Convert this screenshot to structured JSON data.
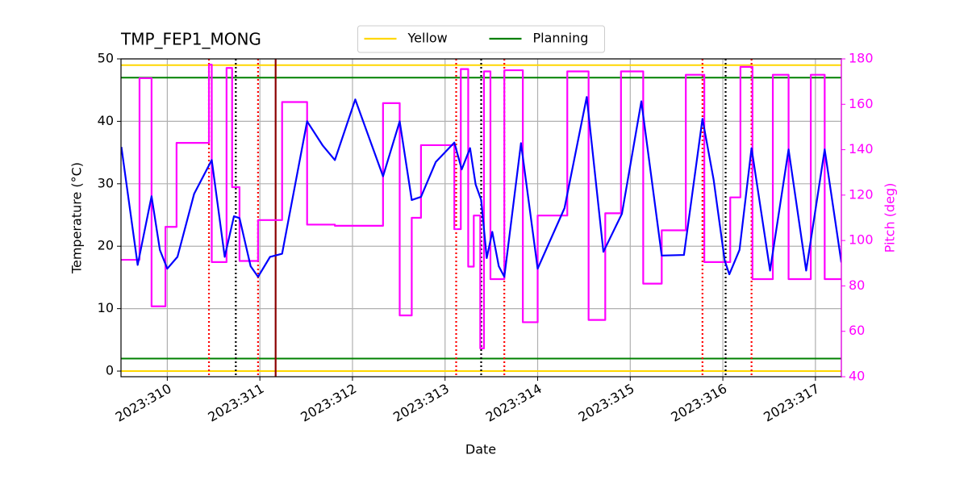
{
  "chart_data": {
    "type": "line",
    "title": "TMP_FEP1_MONG",
    "xlabel": "Date",
    "ylabel": "Temperature (°C)",
    "y2label": "Pitch (deg)",
    "xlim": [
      309.5,
      317.28
    ],
    "ylim": [
      -0.9,
      50
    ],
    "y2lim": [
      40,
      180
    ],
    "xticks": [
      {
        "value": 310,
        "label": "2023:310"
      },
      {
        "value": 311,
        "label": "2023:311"
      },
      {
        "value": 312,
        "label": "2023:312"
      },
      {
        "value": 313,
        "label": "2023:313"
      },
      {
        "value": 314,
        "label": "2023:314"
      },
      {
        "value": 315,
        "label": "2023:315"
      },
      {
        "value": 316,
        "label": "2023:316"
      },
      {
        "value": 317,
        "label": "2023:317"
      }
    ],
    "yticks": [
      0,
      10,
      20,
      30,
      40,
      50
    ],
    "y2ticks": [
      40,
      60,
      80,
      100,
      120,
      140,
      160,
      180
    ],
    "grid": true,
    "legend": "upper center",
    "series": [
      {
        "color": "#0000ff",
        "x": [
          309.504,
          309.68,
          309.83,
          309.92,
          310.0,
          310.11,
          310.29,
          310.48,
          310.62,
          310.72,
          310.78,
          310.9,
          310.98,
          311.11,
          311.24,
          311.51,
          311.68,
          311.81,
          312.03,
          312.33,
          312.51,
          312.64,
          312.74,
          312.9,
          313.1,
          313.18,
          313.27,
          313.33,
          313.39,
          313.45,
          313.51,
          313.58,
          313.64,
          313.82,
          314.0,
          314.29,
          314.53,
          314.71,
          314.91,
          315.12,
          315.34,
          315.58,
          315.78,
          315.9,
          316.02,
          316.07,
          316.18,
          316.31,
          316.51,
          316.71,
          316.9,
          317.1,
          317.28
        ],
        "y": [
          35.9,
          17.0,
          28.0,
          19.4,
          16.4,
          18.3,
          28.4,
          33.8,
          18.3,
          24.8,
          24.5,
          16.8,
          15.1,
          18.3,
          18.8,
          40.0,
          36.1,
          33.8,
          43.5,
          31.2,
          40.0,
          27.4,
          27.9,
          33.5,
          36.6,
          32.3,
          35.7,
          29.9,
          27.4,
          18.1,
          22.3,
          16.8,
          15.1,
          36.5,
          16.4,
          26.1,
          43.9,
          19.1,
          25.2,
          43.2,
          18.5,
          18.6,
          40.4,
          30.7,
          17.7,
          15.5,
          19.4,
          35.7,
          16.1,
          35.5,
          16.1,
          35.5,
          17.4
        ]
      },
      {
        "color": "#ff00ff",
        "axis": "y2",
        "x": [
          309.5,
          309.7,
          309.7,
          309.83,
          309.83,
          309.98,
          309.98,
          310.1,
          310.1,
          310.45,
          310.45,
          310.48,
          310.48,
          310.64,
          310.64,
          310.7,
          310.7,
          310.78,
          310.78,
          310.98,
          310.98,
          311.24,
          311.24,
          311.51,
          311.51,
          311.81,
          311.81,
          312.33,
          312.33,
          312.51,
          312.51,
          312.64,
          312.64,
          312.74,
          312.74,
          313.1,
          313.1,
          313.17,
          313.17,
          313.25,
          313.25,
          313.31,
          313.31,
          313.38,
          313.38,
          313.42,
          313.42,
          313.49,
          313.49,
          313.64,
          313.64,
          313.84,
          313.84,
          314.0,
          314.0,
          314.32,
          314.32,
          314.55,
          314.55,
          314.73,
          314.73,
          314.9,
          314.9,
          315.14,
          315.14,
          315.34,
          315.34,
          315.6,
          315.6,
          315.8,
          315.8,
          316.08,
          316.08,
          316.19,
          316.19,
          316.32,
          316.32,
          316.54,
          316.54,
          316.71,
          316.71,
          316.95,
          316.95,
          317.1,
          317.1,
          317.28
        ],
        "y": [
          91.5,
          91.5,
          171.5,
          171.5,
          71,
          71,
          106,
          106,
          143,
          143,
          177.5,
          177.5,
          90.5,
          90.5,
          176,
          176,
          123.5,
          123.5,
          91,
          91,
          109,
          109,
          161,
          161,
          107,
          107,
          106.5,
          106.5,
          160.5,
          160.5,
          67,
          67,
          110,
          110,
          142,
          142,
          105,
          105,
          175.5,
          175.5,
          88.5,
          88.5,
          111,
          111,
          52.5,
          52.5,
          174.5,
          174.5,
          83,
          83,
          175,
          175,
          64,
          64,
          111,
          111,
          174.5,
          174.5,
          65,
          65,
          112,
          112,
          174.5,
          174.5,
          81,
          81,
          104.5,
          104.5,
          173,
          173,
          90.5,
          90.5,
          119,
          119,
          176.5,
          176.5,
          83,
          83,
          173,
          173,
          83,
          83,
          173,
          173,
          83,
          83
        ]
      }
    ],
    "limit_lines": [
      {
        "name": "Yellow",
        "color": "#ffd700",
        "values": [
          49,
          0
        ]
      },
      {
        "name": "Planning",
        "color": "#008000",
        "values": [
          47,
          2
        ]
      }
    ],
    "vlines": [
      {
        "x": 310.45,
        "color": "#ff0000",
        "style": "dotted"
      },
      {
        "x": 310.74,
        "color": "#000000",
        "style": "dotted"
      },
      {
        "x": 310.98,
        "color": "#ff0000",
        "style": "dotted"
      },
      {
        "x": 311.17,
        "color": "#8b0000",
        "style": "solid"
      },
      {
        "x": 313.12,
        "color": "#ff0000",
        "style": "dotted"
      },
      {
        "x": 313.39,
        "color": "#000000",
        "style": "dotted"
      },
      {
        "x": 313.64,
        "color": "#ff0000",
        "style": "dotted"
      },
      {
        "x": 315.78,
        "color": "#ff0000",
        "style": "dotted"
      },
      {
        "x": 316.03,
        "color": "#000000",
        "style": "dotted"
      },
      {
        "x": 316.31,
        "color": "#ff0000",
        "style": "dotted"
      }
    ]
  }
}
